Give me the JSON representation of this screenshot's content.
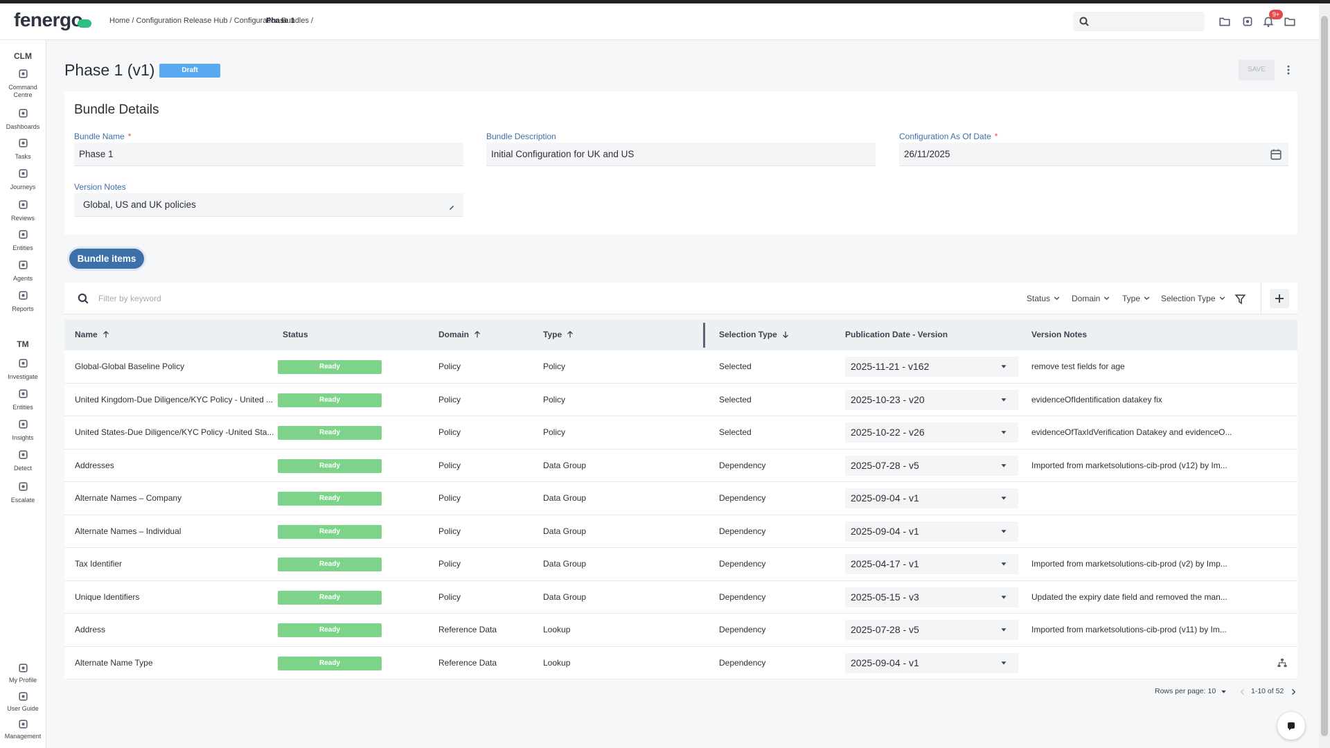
{
  "header": {
    "logo": "fenergo",
    "breadcrumb_path": "Home / Configuration Release Hub / Configuration Bundles /",
    "breadcrumb_current": "Phase 1",
    "notification_badge": "9+"
  },
  "sidebar": {
    "sections": [
      {
        "label": "CLM",
        "items": [
          "Command Centre",
          "Dashboards",
          "Tasks",
          "Journeys",
          "Reviews",
          "Entities",
          "Agents",
          "Reports"
        ]
      },
      {
        "label": "TM",
        "items": [
          "Investigate",
          "Entities",
          "Insights",
          "Detect",
          "Escalate"
        ]
      }
    ],
    "bottom": [
      "My Profile",
      "User Guide",
      "Management"
    ]
  },
  "page": {
    "title": "Phase 1 (v1)",
    "status": "Draft",
    "save": "SAVE"
  },
  "bundle_details": {
    "title": "Bundle Details",
    "fields": [
      {
        "label": "Bundle Name",
        "required_mark": "*",
        "value": "Phase 1"
      },
      {
        "label": "Bundle Description",
        "value": "Initial Configuration for UK and US"
      },
      {
        "label": "Configuration As Of Date",
        "required_mark": "*",
        "value": "26/11/2025"
      },
      {
        "label": "Version Notes",
        "value": "Global, US and UK policies"
      }
    ]
  },
  "tabs": [
    "Bundle items"
  ],
  "filter": {
    "placeholder": "Filter by keyword",
    "filters": [
      "Status",
      "Domain",
      "Type",
      "Selection Type"
    ]
  },
  "table": {
    "columns": [
      {
        "label": "Name",
        "sort": "asc"
      },
      {
        "label": "Status"
      },
      {
        "label": "Domain",
        "sort": "asc"
      },
      {
        "label": "Type",
        "sort": "asc"
      },
      {
        "label": "Selection Type",
        "sort": "desc"
      },
      {
        "label": "Publication Date - Version"
      },
      {
        "label": "Version Notes"
      }
    ],
    "rows": [
      [
        "Global-Global Baseline Policy",
        "Ready",
        "Policy",
        "Policy",
        "Selected",
        "2025-11-21 - v162",
        "remove test fields for age"
      ],
      [
        "United Kingdom-Due Diligence/KYC Policy - United ...",
        "Ready",
        "Policy",
        "Policy",
        "Selected",
        "2025-10-23 - v20",
        "evidenceOfIdentification datakey fix"
      ],
      [
        "United States-Due Diligence/KYC Policy -United Sta...",
        "Ready",
        "Policy",
        "Policy",
        "Selected",
        "2025-10-22 - v26",
        "evidenceOfTaxIdVerification Datakey and evidenceO..."
      ],
      [
        "Addresses",
        "Ready",
        "Policy",
        "Data Group",
        "Dependency",
        "2025-07-28 - v5",
        "Imported from marketsolutions-cib-prod (v12) by Im..."
      ],
      [
        "Alternate Names – Company",
        "Ready",
        "Policy",
        "Data Group",
        "Dependency",
        "2025-09-04 - v1",
        null
      ],
      [
        "Alternate Names – Individual",
        "Ready",
        "Policy",
        "Data Group",
        "Dependency",
        "2025-09-04 - v1",
        null
      ],
      [
        "Tax Identifier",
        "Ready",
        "Policy",
        "Data Group",
        "Dependency",
        "2025-04-17 - v1",
        "Imported from marketsolutions-cib-prod (v2) by Imp..."
      ],
      [
        "Unique Identifiers",
        "Ready",
        "Policy",
        "Data Group",
        "Dependency",
        "2025-05-15 - v3",
        "Updated the expiry date field and removed the man..."
      ],
      [
        "Address",
        "Ready",
        "Reference Data",
        "Lookup",
        "Dependency",
        "2025-07-28 - v5",
        "Imported from marketsolutions-cib-prod (v11) by Im..."
      ],
      [
        "Alternate Name Type",
        "Ready",
        "Reference Data",
        "Lookup",
        "Dependency",
        "2025-09-04 - v1",
        null
      ]
    ]
  },
  "pagination": {
    "rows_per_page_label": "Rows per page:",
    "rows_per_page": "10",
    "range": "1-10 of 52"
  }
}
